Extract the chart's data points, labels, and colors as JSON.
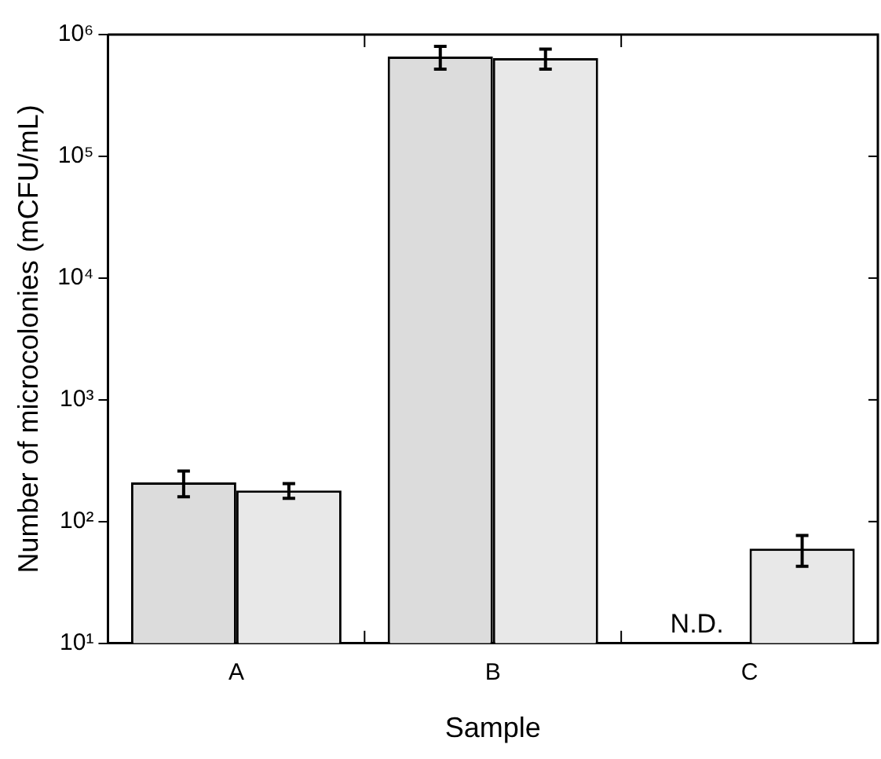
{
  "chart_data": {
    "type": "bar",
    "xlabel": "Sample",
    "ylabel": "Number of microcolonies (mCFU/mL)",
    "categories": [
      "A",
      "B",
      "C"
    ],
    "series": [
      {
        "color": "#dcdcdc",
        "values": [
          210,
          660000,
          null
        ],
        "errors": [
          50,
          140000,
          null
        ]
      },
      {
        "color": "#e8e8e8",
        "values": [
          180,
          640000,
          60
        ],
        "errors": [
          25,
          120000,
          17
        ]
      }
    ],
    "log": "y",
    "ylim": [
      10,
      1000000
    ],
    "yticks": [
      {
        "value": 10,
        "label": "10¹"
      },
      {
        "value": 100,
        "label": "10²"
      },
      {
        "value": 1000,
        "label": "10³"
      },
      {
        "value": 10000,
        "label": "10⁴"
      },
      {
        "value": 100000,
        "label": "10⁵"
      },
      {
        "value": 1000000,
        "label": "10⁶"
      }
    ],
    "annotations": [
      {
        "text": "N.D.",
        "x": "C",
        "y": 10
      }
    ],
    "grid": false,
    "legend": false
  }
}
